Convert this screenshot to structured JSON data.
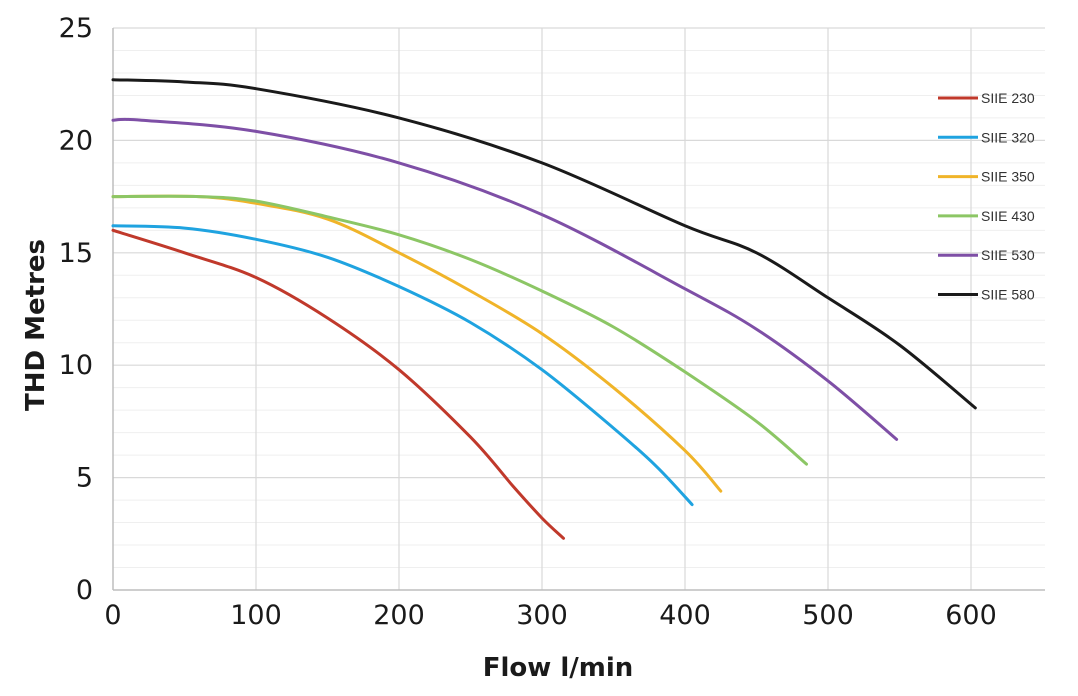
{
  "chart_data": {
    "type": "line",
    "title": "",
    "xlabel": "Flow l/min",
    "ylabel": "THD Metres",
    "xlim": [
      0,
      650
    ],
    "ylim": [
      0,
      25
    ],
    "x_ticks": [
      0,
      100,
      200,
      300,
      400,
      500,
      600
    ],
    "y_ticks": [
      0,
      5,
      10,
      15,
      20,
      25
    ],
    "x_tick_labels": [
      "0",
      "100",
      "200",
      "300",
      "400",
      "500",
      "600"
    ],
    "y_tick_labels": [
      "0",
      "5",
      "10",
      "15",
      "20",
      "25"
    ],
    "grid": true,
    "legend_position": "right",
    "series": [
      {
        "name": "SIIE 230",
        "color": "#c0392b",
        "x": [
          0,
          50,
          100,
          150,
          200,
          250,
          280,
          300,
          315
        ],
        "y": [
          16.0,
          15.0,
          13.9,
          12.1,
          9.8,
          6.8,
          4.6,
          3.2,
          2.3
        ]
      },
      {
        "name": "SIIE 320",
        "color": "#1fa3e0",
        "x": [
          0,
          50,
          100,
          150,
          200,
          250,
          300,
          350,
          380,
          405
        ],
        "y": [
          16.2,
          16.1,
          15.6,
          14.8,
          13.5,
          11.9,
          9.8,
          7.2,
          5.5,
          3.8
        ]
      },
      {
        "name": "SIIE 350",
        "color": "#f0b429",
        "x": [
          0,
          60,
          100,
          150,
          200,
          250,
          300,
          350,
          400,
          425
        ],
        "y": [
          17.5,
          17.5,
          17.2,
          16.5,
          15.0,
          13.3,
          11.4,
          9.0,
          6.2,
          4.4
        ]
      },
      {
        "name": "SIIE 430",
        "color": "#8cc665",
        "x": [
          0,
          60,
          100,
          150,
          200,
          250,
          300,
          350,
          400,
          450,
          485
        ],
        "y": [
          17.5,
          17.5,
          17.3,
          16.6,
          15.8,
          14.7,
          13.3,
          11.7,
          9.7,
          7.5,
          5.6
        ]
      },
      {
        "name": "SIIE 530",
        "color": "#7e4fa6",
        "x": [
          0,
          20,
          100,
          200,
          300,
          400,
          450,
          500,
          548
        ],
        "y": [
          20.9,
          20.9,
          20.4,
          19.0,
          16.7,
          13.4,
          11.6,
          9.3,
          6.7
        ]
      },
      {
        "name": "SIIE 580",
        "color": "#1a1a1a",
        "x": [
          0,
          50,
          100,
          200,
          300,
          400,
          450,
          500,
          550,
          603
        ],
        "y": [
          22.7,
          22.6,
          22.3,
          21.0,
          19.0,
          16.2,
          15.0,
          13.0,
          10.9,
          8.1
        ]
      }
    ]
  }
}
